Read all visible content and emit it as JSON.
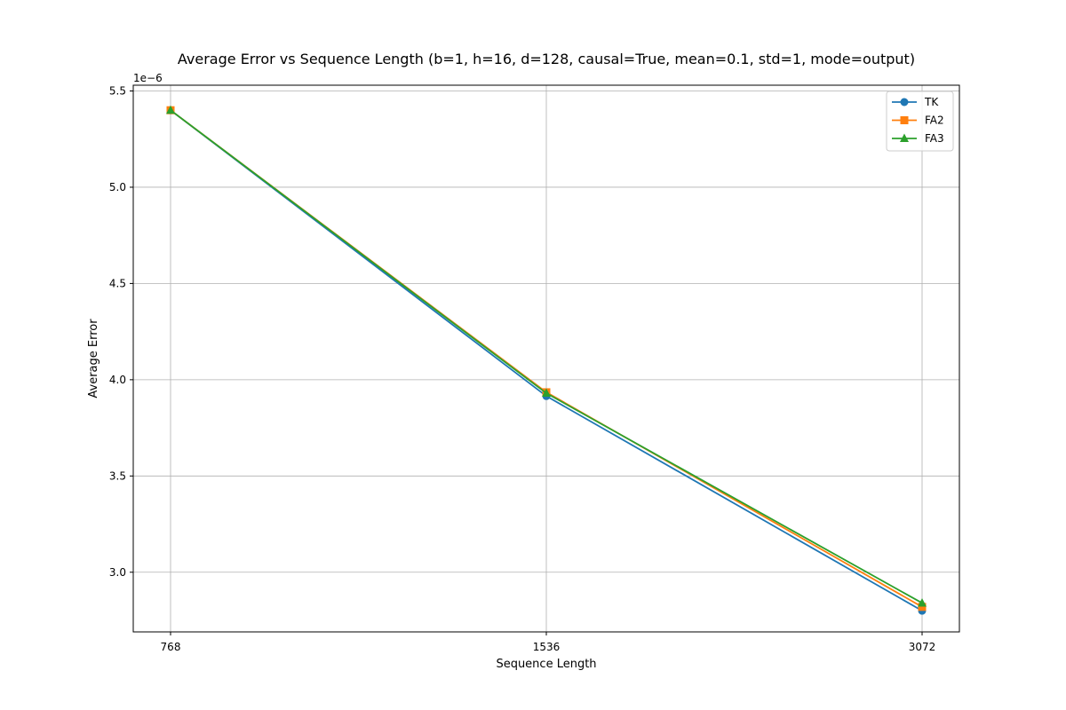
{
  "chart_data": {
    "type": "line",
    "title": "Average Error vs Sequence Length (b=1, h=16, d=128, causal=True, mean=0.1, std=1, mode=output)",
    "xlabel": "Sequence Length",
    "ylabel": "Average Error",
    "y_offset_label": "1e−6",
    "x": [
      768,
      1536,
      3072
    ],
    "x_tick_labels": [
      "768",
      "1536",
      "3072"
    ],
    "x_scale": "categorical",
    "y_ticks": [
      3.0,
      3.5,
      4.0,
      4.5,
      5.0,
      5.5
    ],
    "y_tick_labels": [
      "3.0",
      "3.5",
      "4.0",
      "4.5",
      "5.0",
      "5.5"
    ],
    "ylim": [
      2.69,
      5.53
    ],
    "y_multiplier": 1e-06,
    "grid": true,
    "legend_position": "top-right",
    "series": [
      {
        "name": "TK",
        "values": [
          5.4,
          3.915,
          2.8
        ],
        "color": "#1f77b4",
        "marker": "circle"
      },
      {
        "name": "FA2",
        "values": [
          5.4,
          3.935,
          2.82
        ],
        "color": "#ff7f0e",
        "marker": "square"
      },
      {
        "name": "FA3",
        "values": [
          5.4,
          3.93,
          2.84
        ],
        "color": "#2ca02c",
        "marker": "triangle"
      }
    ]
  }
}
